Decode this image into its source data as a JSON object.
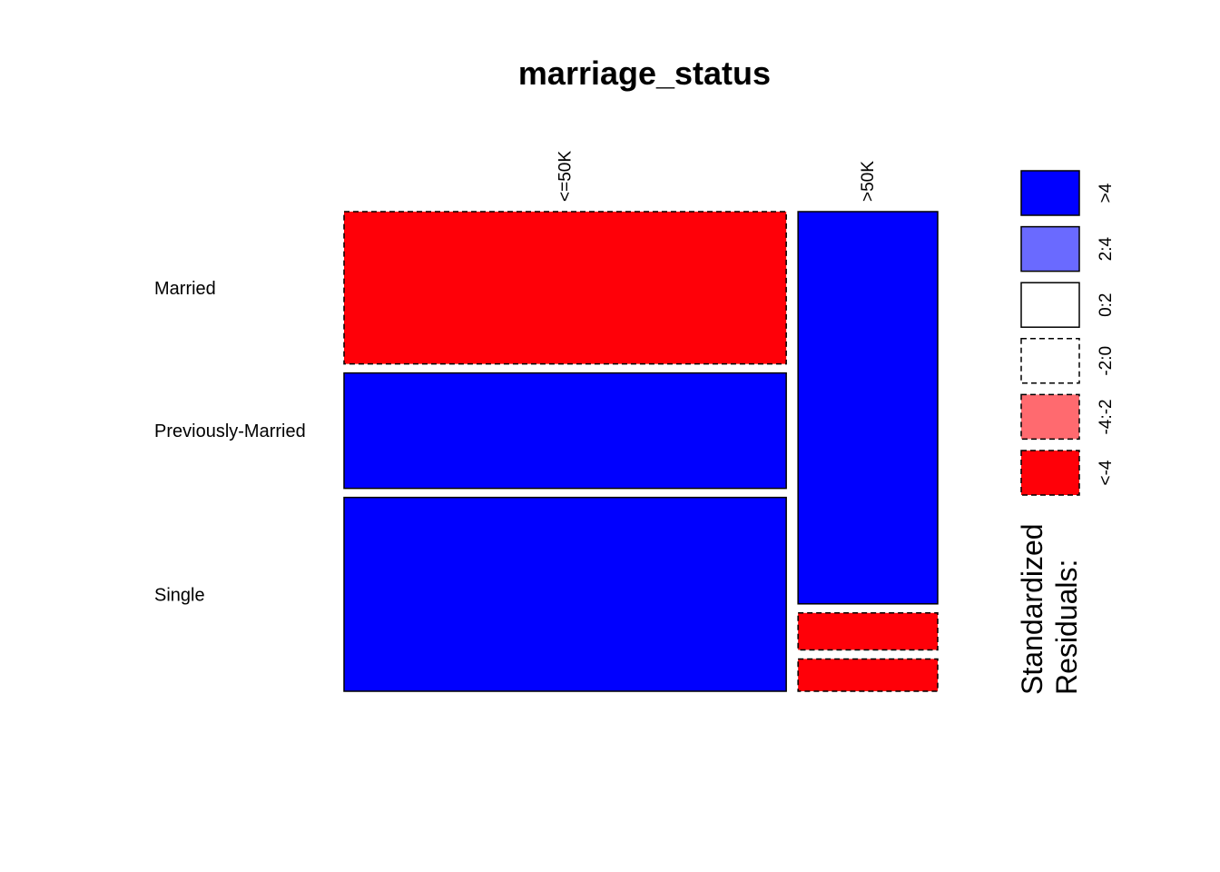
{
  "chart_data": {
    "type": "mosaic",
    "title": "marriage_status",
    "column_variable_levels": [
      "<=50K",
      ">50K"
    ],
    "row_variable_levels": [
      "Married",
      "Previously-Married",
      "Single"
    ],
    "column_proportions": [
      0.76,
      0.24
    ],
    "conditional_row_proportions": [
      {
        "column": "<=50K",
        "values": [
          0.33,
          0.25,
          0.42
        ]
      },
      {
        "column": ">50K",
        "values": [
          0.85,
          0.08,
          0.07
        ]
      }
    ],
    "cell_residual_class": [
      {
        "column": "<=50K",
        "row": "Married",
        "class": "<-4"
      },
      {
        "column": "<=50K",
        "row": "Previously-Married",
        "class": ">4"
      },
      {
        "column": "<=50K",
        "row": "Single",
        "class": ">4"
      },
      {
        "column": ">50K",
        "row": "Married",
        "class": ">4"
      },
      {
        "column": ">50K",
        "row": "Previously-Married",
        "class": "<-4"
      },
      {
        "column": ">50K",
        "row": "Single",
        "class": "<-4"
      }
    ],
    "legend": {
      "title": "Standardized\nResiduals:",
      "placement": "right",
      "entries": [
        {
          "label": ">4",
          "color": "#0000FF",
          "dashed": false
        },
        {
          "label": "2:4",
          "color": "#6A6AFF",
          "dashed": false
        },
        {
          "label": "0:2",
          "color": "#FFFFFF",
          "dashed": false
        },
        {
          "label": "-2:0",
          "color": "#FFFFFF",
          "dashed": true
        },
        {
          "label": "-4:-2",
          "color": "#FF6A6F",
          "dashed": true
        },
        {
          "label": "<-4",
          "color": "#FF0008",
          "dashed": true
        }
      ]
    }
  }
}
